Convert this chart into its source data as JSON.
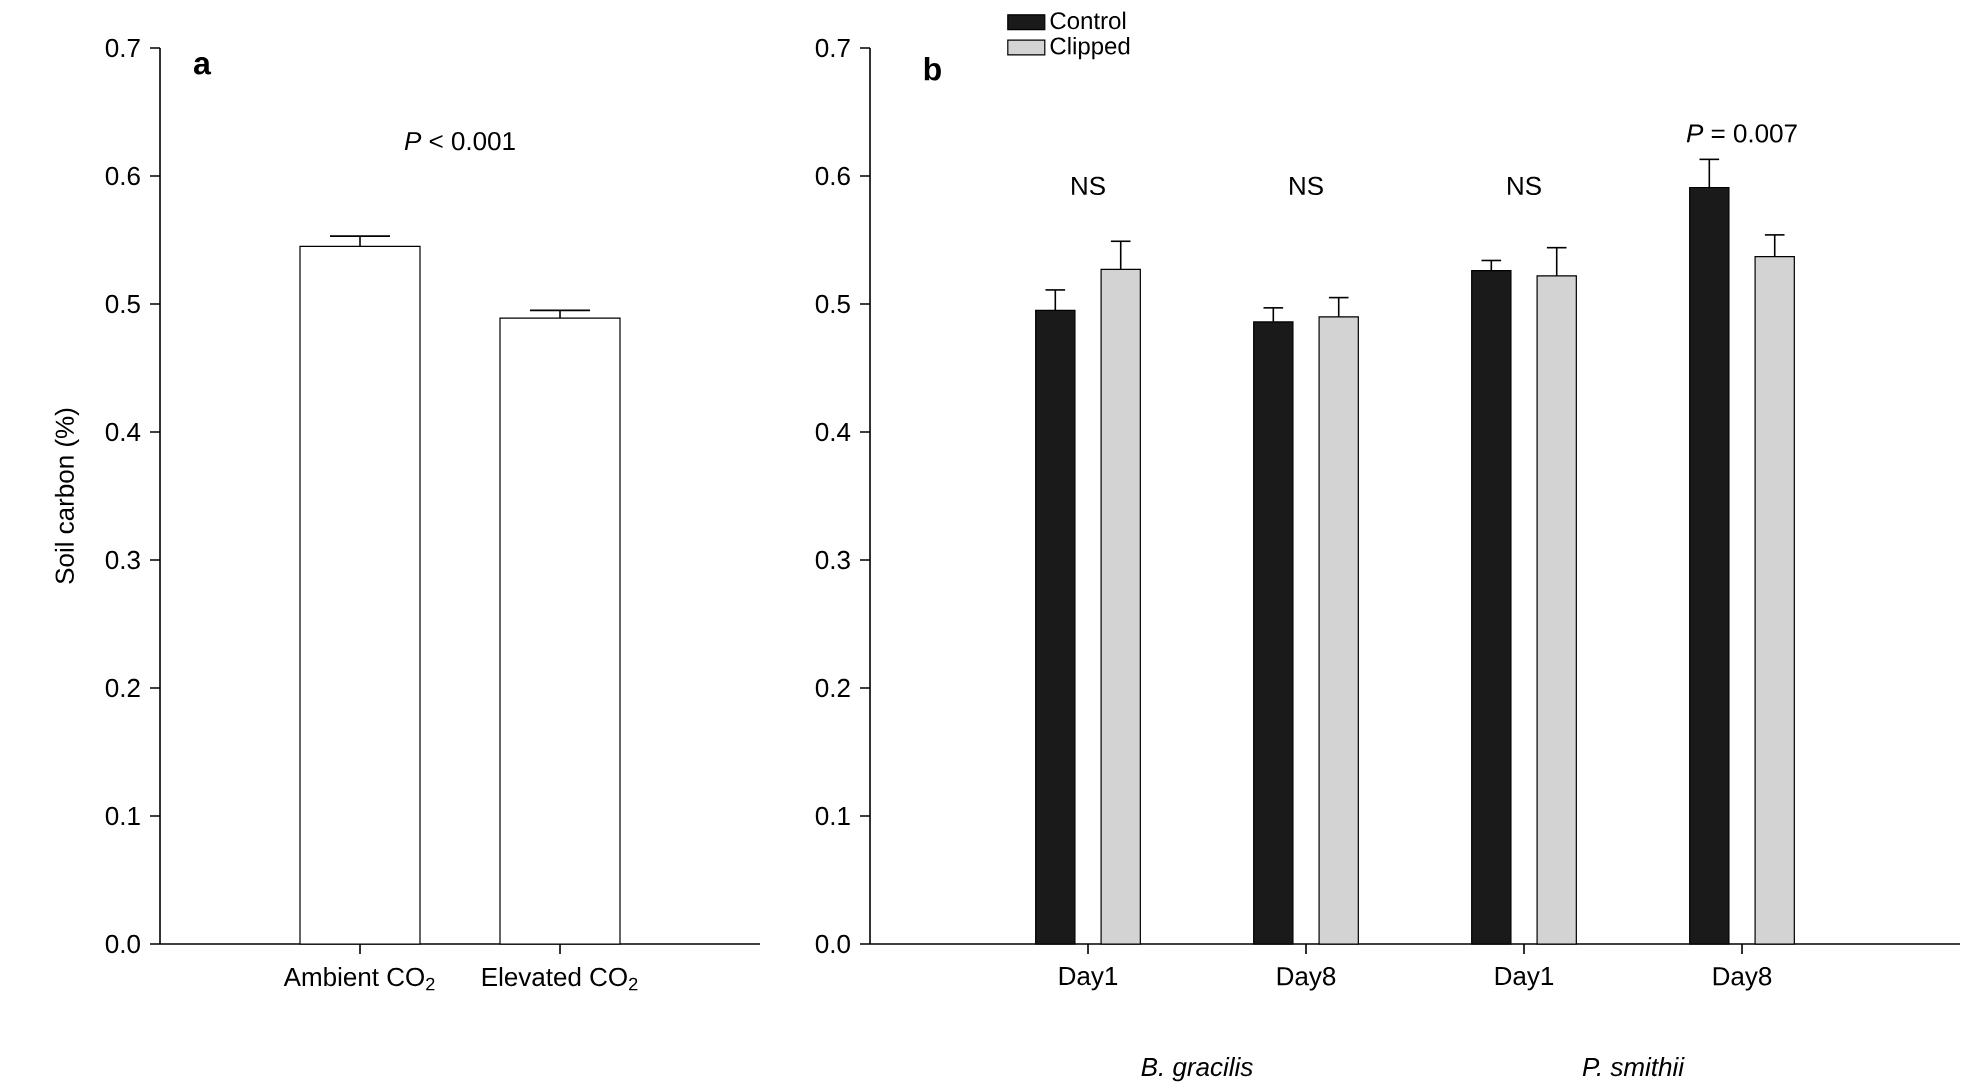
{
  "chart_data": [
    {
      "type": "bar",
      "title": "a",
      "ylabel": "Soil carbon (%)",
      "categories": [
        "Ambient CO$_{2}$",
        "Elevated CO$_{2}$"
      ],
      "values": [
        0.545,
        0.489
      ],
      "colors": [
        "#ffffff",
        "#ffffff"
      ],
      "errors": [
        [
          0.545,
          0.553
        ],
        [
          0.489,
          0.495
        ]
      ],
      "ylim": [
        0,
        0.7
      ],
      "yticks": [
        {
          "value": 0,
          "label": "0.0"
        },
        0.1,
        0.2,
        0.3,
        0.4,
        0.5,
        0.6,
        0.7
      ],
      "annotations": [
        "*P* < 0.001"
      ]
    },
    {
      "type": "bar",
      "title": "b",
      "categories": [
        "Day1",
        "Day8",
        "Day1",
        "Day8"
      ],
      "series": [
        {
          "name": "Control",
          "color": "#1a1a1a",
          "values": [
            0.495,
            0.486,
            0.526,
            0.591
          ],
          "errors": [
            [
              0.495,
              0.511
            ],
            [
              0.486,
              0.497
            ],
            [
              0.526,
              0.534
            ],
            [
              0.591,
              0.613
            ]
          ]
        },
        {
          "name": "Clipped",
          "color": "#d3d3d3",
          "values": [
            0.527,
            0.49,
            0.522,
            0.537
          ],
          "errors": [
            [
              0.527,
              0.549
            ],
            [
              0.49,
              0.505
            ],
            [
              0.522,
              0.544
            ],
            [
              0.537,
              0.554
            ]
          ]
        }
      ],
      "ylim": [
        0,
        0.7
      ],
      "yticks": [
        {
          "value": 0,
          "label": "0.0"
        },
        0.1,
        0.2,
        0.3,
        0.4,
        0.5,
        0.6,
        0.7
      ],
      "legend": "top left",
      "annotations": [
        "NS",
        "NS",
        "NS",
        "*P* = 0.007",
        "B. gracilis",
        "P. smithii"
      ]
    }
  ]
}
